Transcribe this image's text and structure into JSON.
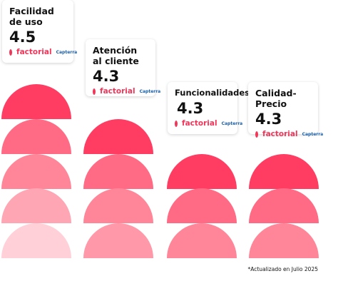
{
  "cards": [
    {
      "title": "Facilidad de uso",
      "score": "4.5",
      "brand": "factorial",
      "source": "Capterra"
    },
    {
      "title": "Atención al cliente",
      "score": "4.3",
      "brand": "factorial",
      "source": "Capterra"
    },
    {
      "title": "Funcionalidades",
      "score": "4.3",
      "brand": "factorial",
      "source": "Capterra"
    },
    {
      "title": "Calidad-Precio",
      "score": "4.3",
      "brand": "factorial",
      "source": "Capterra"
    }
  ],
  "footnote": "*Actualizado en Julio 2025"
}
